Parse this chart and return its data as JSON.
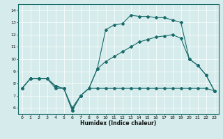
{
  "title": "",
  "xlabel": "Humidex (Indice chaleur)",
  "ylabel": "",
  "xlim": [
    -0.5,
    23.5
  ],
  "ylim": [
    5.5,
    14.5
  ],
  "xticks": [
    0,
    1,
    2,
    3,
    4,
    5,
    6,
    7,
    8,
    9,
    10,
    11,
    12,
    13,
    14,
    15,
    16,
    17,
    18,
    19,
    20,
    21,
    22,
    23
  ],
  "yticks": [
    6,
    7,
    8,
    9,
    10,
    11,
    12,
    13,
    14
  ],
  "bg_color": "#d6ecec",
  "grid_color": "#ffffff",
  "line_color": "#1a6b6b",
  "series": [
    {
      "x": [
        0,
        1,
        2,
        3,
        4,
        5,
        6,
        7,
        8,
        9,
        10,
        11,
        12,
        13,
        14,
        15,
        16,
        17,
        18,
        19,
        20,
        21,
        22,
        23
      ],
      "y": [
        7.6,
        8.4,
        8.4,
        8.4,
        7.6,
        7.6,
        6.0,
        7.0,
        7.6,
        7.6,
        7.6,
        7.6,
        7.6,
        7.6,
        7.6,
        7.6,
        7.6,
        7.6,
        7.6,
        7.6,
        7.6,
        7.6,
        7.6,
        7.4
      ]
    },
    {
      "x": [
        0,
        1,
        2,
        3,
        4,
        5,
        6,
        7,
        8,
        9,
        10,
        11,
        12,
        13,
        14,
        15,
        16,
        17,
        18,
        19,
        20,
        21,
        22,
        23
      ],
      "y": [
        7.6,
        8.4,
        8.4,
        8.4,
        7.8,
        7.6,
        5.8,
        7.0,
        7.6,
        9.2,
        12.4,
        12.8,
        12.9,
        13.6,
        13.5,
        13.5,
        13.4,
        13.4,
        13.2,
        13.0,
        10.0,
        9.5,
        8.7,
        7.4
      ]
    },
    {
      "x": [
        0,
        1,
        2,
        3,
        4,
        5,
        6,
        7,
        8,
        9,
        10,
        11,
        12,
        13,
        14,
        15,
        16,
        17,
        18,
        19,
        20,
        21,
        22,
        23
      ],
      "y": [
        7.6,
        8.4,
        8.4,
        8.4,
        7.8,
        7.6,
        5.8,
        7.0,
        7.6,
        9.2,
        9.8,
        10.2,
        10.6,
        11.0,
        11.4,
        11.6,
        11.8,
        11.9,
        12.0,
        11.7,
        10.0,
        9.5,
        8.7,
        7.4
      ]
    }
  ],
  "marker": "D",
  "marker_size": 2.0,
  "line_width": 0.8,
  "xlabel_fontsize": 5.5,
  "tick_fontsize": 4.5
}
